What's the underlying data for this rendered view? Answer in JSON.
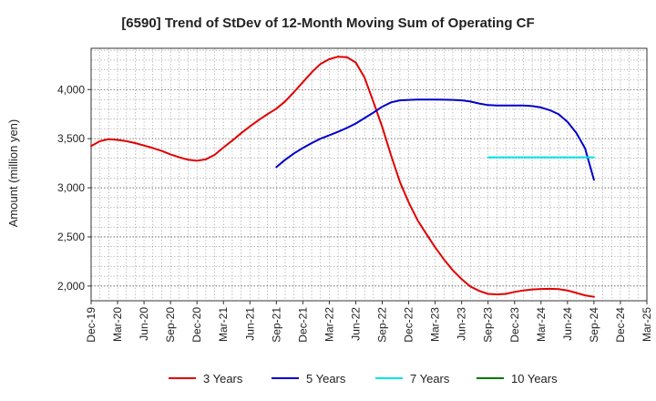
{
  "chart_data": {
    "type": "line",
    "title": "[6590]  Trend of StDev of 12-Month Moving Sum of Operating CF",
    "ylabel": "Amount (million yen)",
    "xlabel": "",
    "ylim": [
      1850,
      4420
    ],
    "xlim": [
      "Dec-19",
      "Mar-25"
    ],
    "yticks": [
      2000,
      2500,
      3000,
      3500,
      4000
    ],
    "ytick_labels": [
      "2,000",
      "2,500",
      "3,000",
      "3,500",
      "4,000"
    ],
    "xtick_labels": [
      "Dec-19",
      "Mar-20",
      "Jun-20",
      "Sep-20",
      "Dec-20",
      "Mar-21",
      "Jun-21",
      "Sep-21",
      "Dec-21",
      "Mar-22",
      "Jun-22",
      "Sep-22",
      "Dec-22",
      "Mar-23",
      "Jun-23",
      "Sep-23",
      "Dec-23",
      "Mar-24",
      "Jun-24",
      "Sep-24",
      "Dec-24",
      "Mar-25"
    ],
    "grid": true,
    "legend_position": "bottom",
    "series": [
      {
        "name": "3 Years",
        "color": "#e00000",
        "x": [
          "Dec-19",
          "Jan-20",
          "Feb-20",
          "Mar-20",
          "Apr-20",
          "May-20",
          "Jun-20",
          "Jul-20",
          "Aug-20",
          "Sep-20",
          "Oct-20",
          "Nov-20",
          "Dec-20",
          "Jan-21",
          "Feb-21",
          "Mar-21",
          "Apr-21",
          "May-21",
          "Jun-21",
          "Jul-21",
          "Aug-21",
          "Sep-21",
          "Oct-21",
          "Nov-21",
          "Dec-21",
          "Jan-22",
          "Feb-22",
          "Mar-22",
          "Apr-22",
          "May-22",
          "Jun-22",
          "Jul-22",
          "Aug-22",
          "Sep-22",
          "Oct-22",
          "Nov-22",
          "Dec-22",
          "Jan-23",
          "Feb-23",
          "Mar-23",
          "Apr-23",
          "May-23",
          "Jun-23",
          "Jul-23",
          "Aug-23",
          "Sep-23",
          "Oct-23",
          "Nov-23",
          "Dec-23",
          "Jan-24",
          "Feb-24",
          "Mar-24",
          "Apr-24",
          "May-24",
          "Jun-24",
          "Jul-24",
          "Aug-24",
          "Sep-24"
        ],
        "values": [
          3425,
          3475,
          3495,
          3488,
          3475,
          3455,
          3430,
          3405,
          3375,
          3340,
          3310,
          3285,
          3275,
          3290,
          3335,
          3410,
          3480,
          3555,
          3625,
          3690,
          3750,
          3805,
          3880,
          3975,
          4075,
          4175,
          4260,
          4310,
          4335,
          4330,
          4275,
          4120,
          3875,
          3620,
          3330,
          3060,
          2850,
          2670,
          2530,
          2395,
          2270,
          2160,
          2070,
          1995,
          1950,
          1920,
          1915,
          1920,
          1940,
          1955,
          1965,
          1970,
          1972,
          1968,
          1955,
          1930,
          1905,
          1890
        ]
      },
      {
        "name": "5 Years",
        "color": "#0000cc",
        "x": [
          "Sep-21",
          "Oct-21",
          "Nov-21",
          "Dec-21",
          "Jan-22",
          "Feb-22",
          "Mar-22",
          "Apr-22",
          "May-22",
          "Jun-22",
          "Jul-22",
          "Aug-22",
          "Sep-22",
          "Oct-22",
          "Nov-22",
          "Dec-22",
          "Jan-23",
          "Feb-23",
          "Mar-23",
          "Apr-23",
          "May-23",
          "Jun-23",
          "Jul-23",
          "Aug-23",
          "Sep-23",
          "Oct-23",
          "Nov-23",
          "Dec-23",
          "Jan-24",
          "Feb-24",
          "Mar-24",
          "Apr-24",
          "May-24",
          "Jun-24",
          "Jul-24",
          "Aug-24",
          "Sep-24"
        ],
        "values": [
          3210,
          3285,
          3350,
          3405,
          3455,
          3500,
          3535,
          3570,
          3610,
          3655,
          3710,
          3765,
          3825,
          3870,
          3890,
          3895,
          3898,
          3898,
          3898,
          3897,
          3895,
          3890,
          3878,
          3858,
          3842,
          3838,
          3838,
          3838,
          3838,
          3832,
          3818,
          3790,
          3748,
          3670,
          3560,
          3400,
          3080
        ]
      },
      {
        "name": "7 Years",
        "color": "#00e5e5",
        "x": [
          "Sep-23",
          "Sep-24"
        ],
        "values": [
          3310,
          3310
        ]
      },
      {
        "name": "10 Years",
        "color": "#007700",
        "x": [],
        "values": []
      }
    ]
  }
}
